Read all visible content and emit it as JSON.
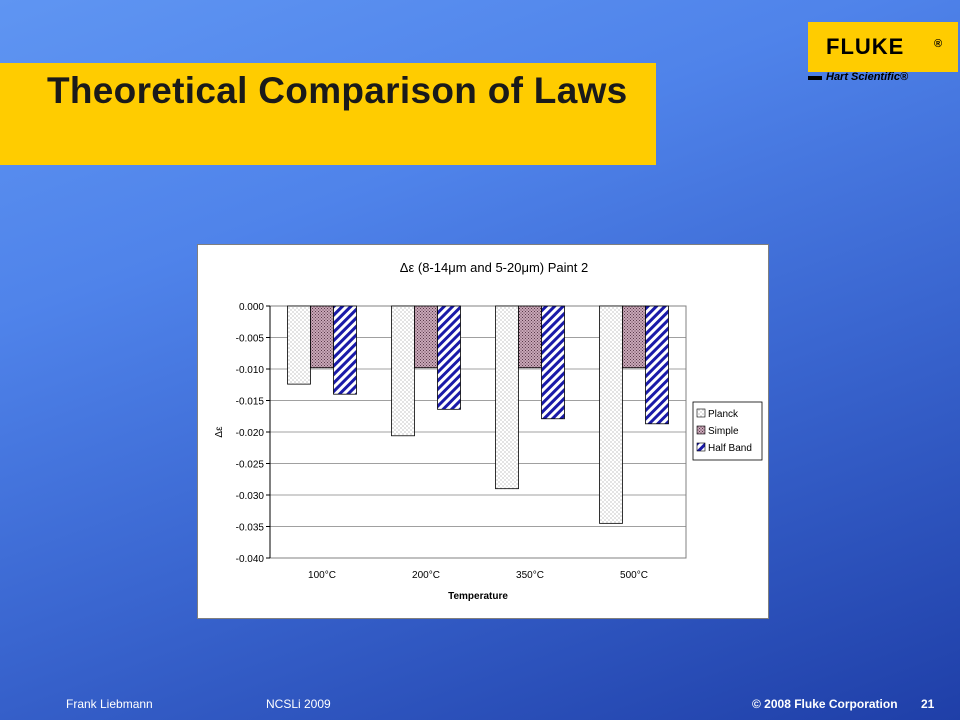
{
  "slide": {
    "title": "Theoretical Comparison of Laws"
  },
  "logo": {
    "brand": "FLUKE",
    "registered": "®",
    "subbrand": "Hart Scientific®"
  },
  "footer": {
    "author": "Frank Liebmann",
    "event": "NCSLi 2009",
    "copyright": "© 2008 Fluke Corporation",
    "page": "21"
  },
  "colors": {
    "accent": "#ffcc00",
    "half_band": "#1a1aa8"
  },
  "chart_data": {
    "type": "bar",
    "title": "Δε (8-14μm and 5-20μm) Paint 2",
    "xlabel": "Temperature",
    "ylabel": "Δε",
    "categories": [
      "100°C",
      "200°C",
      "350°C",
      "500°C"
    ],
    "ylim": [
      -0.04,
      0.0
    ],
    "yticks": [
      "0.000",
      "-0.005",
      "-0.010",
      "-0.015",
      "-0.020",
      "-0.025",
      "-0.030",
      "-0.035",
      "-0.040"
    ],
    "grid": true,
    "legend_position": "right",
    "series": [
      {
        "name": "Planck",
        "values": [
          -0.0124,
          -0.0206,
          -0.029,
          -0.0345
        ]
      },
      {
        "name": "Simple",
        "values": [
          -0.0098,
          -0.0098,
          -0.0098,
          -0.0098
        ]
      },
      {
        "name": "Half Band",
        "values": [
          -0.014,
          -0.0164,
          -0.0179,
          -0.0187
        ]
      }
    ]
  }
}
